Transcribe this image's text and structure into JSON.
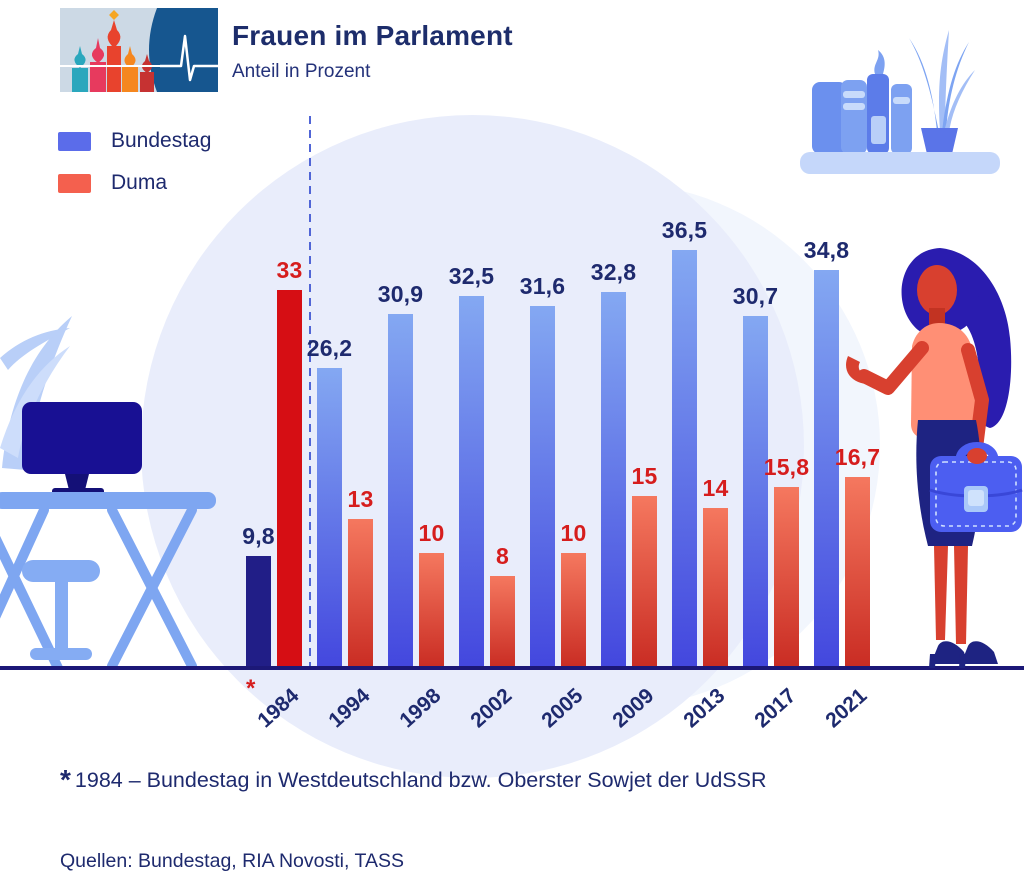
{
  "header": {
    "title": "Frauen im Parlament",
    "subtitle": "Anteil in Prozent",
    "logo_icon": "kremlin-cathedral-pulse-logo"
  },
  "legend": {
    "items": [
      {
        "label": "Bundestag",
        "color": "#5b6cea"
      },
      {
        "label": "Duma",
        "color": "#f4604e"
      }
    ]
  },
  "chart_data": {
    "type": "bar",
    "title": "Frauen im Parlament",
    "subtitle": "Anteil in Prozent",
    "unit": "percent",
    "categories": [
      "1984",
      "1994",
      "1998",
      "2002",
      "2005",
      "2009",
      "2013",
      "2017",
      "2021"
    ],
    "first_category_marker": "*",
    "series": [
      {
        "name": "Bundestag",
        "values": [
          9.8,
          26.2,
          30.9,
          32.5,
          31.6,
          32.8,
          36.5,
          30.7,
          34.8
        ],
        "labels": [
          "9,8",
          "26,2",
          "30,9",
          "32,5",
          "31,6",
          "32,8",
          "36,5",
          "30,7",
          "34,8"
        ]
      },
      {
        "name": "Duma",
        "values": [
          33,
          13,
          10,
          8,
          10,
          15,
          14,
          15.8,
          16.7
        ],
        "labels": [
          "33",
          "13",
          "10",
          "8",
          "10",
          "15",
          "14",
          "15,8",
          "16,7"
        ]
      }
    ],
    "ylim": [
      0,
      40
    ],
    "grid": false,
    "legend_position": "top-left",
    "separator_after_first_category": true
  },
  "footnote": {
    "marker": "*",
    "text": "1984 – Bundestag in Westdeutschland bzw. Oberster Sowjet der UdSSR"
  },
  "sources": "Quellen: Bundestag, RIA Novosti, TASS",
  "colors": {
    "navy_text": "#1e2a6e",
    "red_text": "#d61d1d",
    "bundestag_gradient_top": "#84a8f2",
    "bundestag_gradient_bottom": "#4347de",
    "duma_gradient_top": "#f5785f",
    "duma_gradient_bottom": "#c92c23",
    "bundestag_first_bar": "#211e87",
    "duma_first_bar": "#d60e14",
    "legend_bundestag": "#5b6cea",
    "legend_duma": "#f4604e",
    "axis_line": "#1c1877",
    "separator_line": "#5065d6",
    "circle_main": "#e9edfb",
    "circle_light": "#f2f6fd"
  },
  "illustrations": {
    "top_right": "bookshelf-with-plant",
    "left": "desk-with-monitor-and-stool",
    "right": "businesswoman-with-briefcase"
  }
}
